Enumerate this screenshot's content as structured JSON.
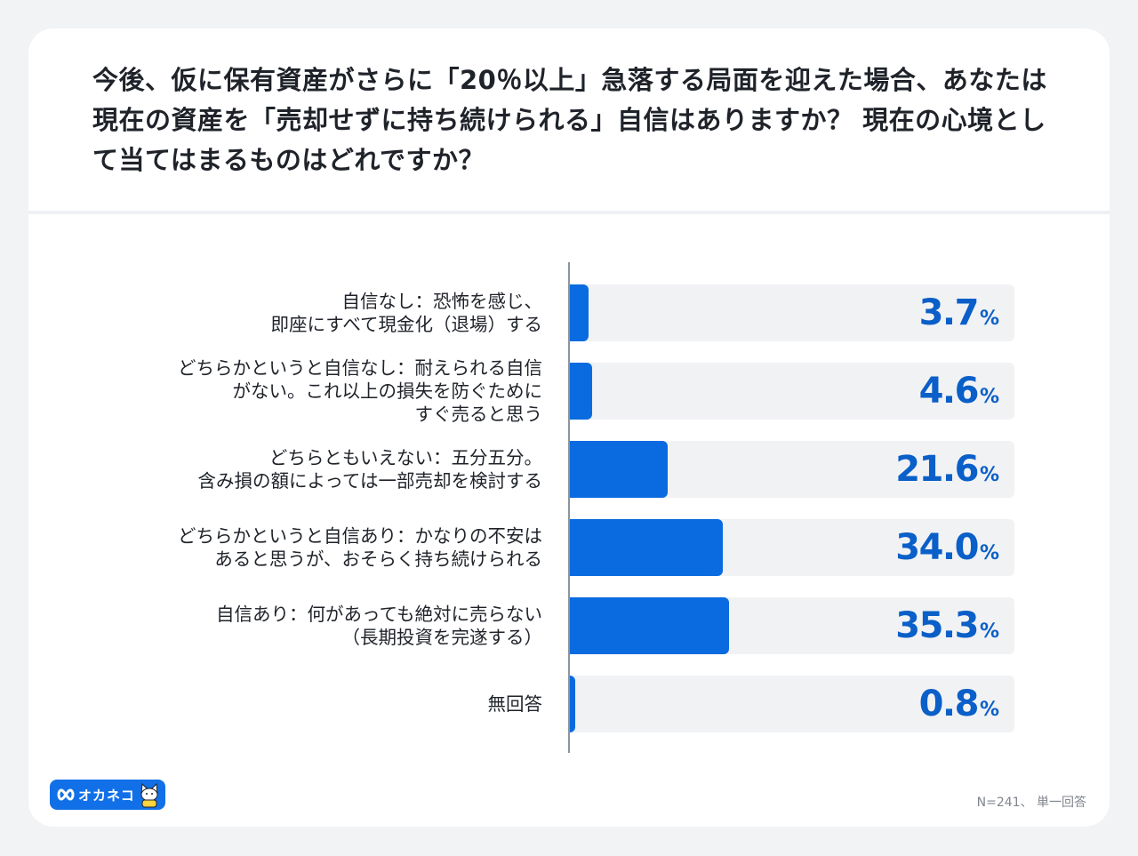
{
  "title": "今後、仮に保有資産がさらに「20％以上」急落する局面を迎えた場合、あなたは現在の資産を「売却せずに持ち続けられる」自信はありますか？ 現在の心境として当てはまるものはどれですか？",
  "note": "N=241、 単一回答",
  "logo": {
    "text": "オカネコ",
    "mark_icon": "infinity-icon",
    "mascot_icon": "cat-mascot-icon"
  },
  "colors": {
    "bar": "#0a6be0",
    "track": "#f1f2f4",
    "value_text": "#0a5fc8",
    "background": "#f2f3f5"
  },
  "chart_data": {
    "type": "bar",
    "orientation": "horizontal",
    "categories": [
      [
        "自信なし：恐怖を感じ、",
        "即座にすべて現金化（退場）する"
      ],
      [
        "どちらかというと自信なし：耐えられる自信",
        "がない。これ以上の損失を防ぐために",
        "すぐ売ると思う"
      ],
      [
        "どちらともいえない：五分五分。",
        "含み損の額によっては一部売却を検討する"
      ],
      [
        "どちらかというと自信あり：かなりの不安は",
        "あると思うが、おそらく持ち続けられる"
      ],
      [
        "自信あり：何があっても絶対に売らない",
        "（長期投資を完遂する）"
      ],
      [
        "無回答"
      ]
    ],
    "values": [
      3.7,
      4.6,
      21.6,
      34.0,
      35.3,
      0.8
    ],
    "value_labels": [
      "3.7",
      "4.6",
      "21.6",
      "34.0",
      "35.3",
      "0.8"
    ],
    "unit": "%",
    "xlim": [
      0,
      100
    ],
    "grid": false,
    "legend": "none"
  }
}
